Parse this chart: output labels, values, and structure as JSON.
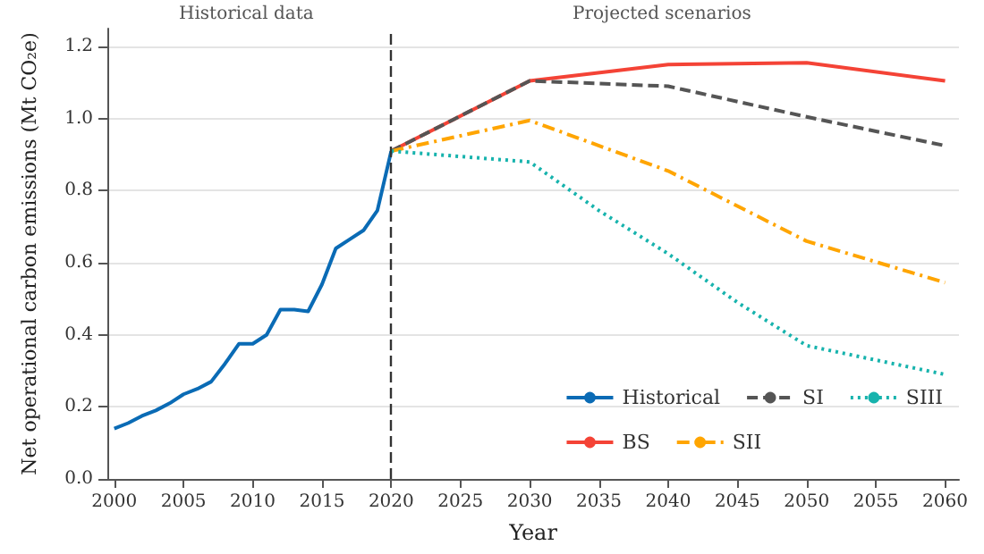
{
  "chart_data": {
    "type": "line",
    "xlabel": "Year",
    "ylabel": "Net operational carbon emissions (Mt CO₂e)",
    "annotations": [
      "Historical data",
      "Projected scenarios"
    ],
    "xlim": [
      1999.5,
      2061
    ],
    "xticks": [
      2000,
      2005,
      2010,
      2015,
      2020,
      2025,
      2030,
      2035,
      2040,
      2045,
      2050,
      2055,
      2060
    ],
    "ylim": [
      0,
      1.25
    ],
    "yticks": [
      {
        "value": 0,
        "label": "0.0"
      },
      {
        "value": 0.2,
        "label": "0.2"
      },
      {
        "value": 0.4,
        "label": "0.4"
      },
      {
        "value": 0.6,
        "label": "0.6"
      },
      {
        "value": 0.8,
        "label": "0.8"
      },
      {
        "value": 1,
        "label": "1.0"
      },
      {
        "value": 1.2,
        "label": "1.2"
      }
    ],
    "grid": "y",
    "legend": "bottom right",
    "marker": "none",
    "ref_lines": [
      {
        "axis": "x",
        "value": 2020,
        "color": "#333333",
        "line_style": "dashed"
      }
    ],
    "series": [
      {
        "name": "Historical",
        "color": "#0a6bb5",
        "line_style": "solid",
        "x": [
          2000,
          2001,
          2002,
          2003,
          2004,
          2005,
          2006,
          2007,
          2008,
          2009,
          2010,
          2011,
          2012,
          2013,
          2014,
          2015,
          2016,
          2017,
          2018,
          2019,
          2020
        ],
        "values": [
          0.14,
          0.155,
          0.175,
          0.19,
          0.21,
          0.235,
          0.25,
          0.27,
          0.32,
          0.375,
          0.375,
          0.4,
          0.47,
          0.47,
          0.465,
          0.54,
          0.64,
          0.665,
          0.69,
          0.745,
          0.91
        ]
      },
      {
        "name": "BS",
        "color": "#f44336",
        "line_style": "solid",
        "x": [
          2020,
          2030,
          2040,
          2050,
          2060
        ],
        "values": [
          0.91,
          1.105,
          1.15,
          1.155,
          1.105
        ]
      },
      {
        "name": "SI",
        "color": "#555555",
        "line_style": "dashed",
        "x": [
          2020,
          2030,
          2040,
          2050,
          2060
        ],
        "values": [
          0.91,
          1.105,
          1.09,
          1.005,
          0.925
        ]
      },
      {
        "name": "SII",
        "color": "#ffa500",
        "line_style": "dashdot",
        "x": [
          2020,
          2030,
          2040,
          2050,
          2060
        ],
        "values": [
          0.91,
          0.995,
          0.855,
          0.66,
          0.545
        ]
      },
      {
        "name": "SIII",
        "color": "#17b3ad",
        "line_style": "dotted",
        "x": [
          2020,
          2030,
          2035,
          2040,
          2045,
          2050,
          2055,
          2060
        ],
        "values": [
          0.91,
          0.88,
          0.745,
          0.625,
          0.49,
          0.37,
          0.33,
          0.29
        ]
      }
    ]
  }
}
